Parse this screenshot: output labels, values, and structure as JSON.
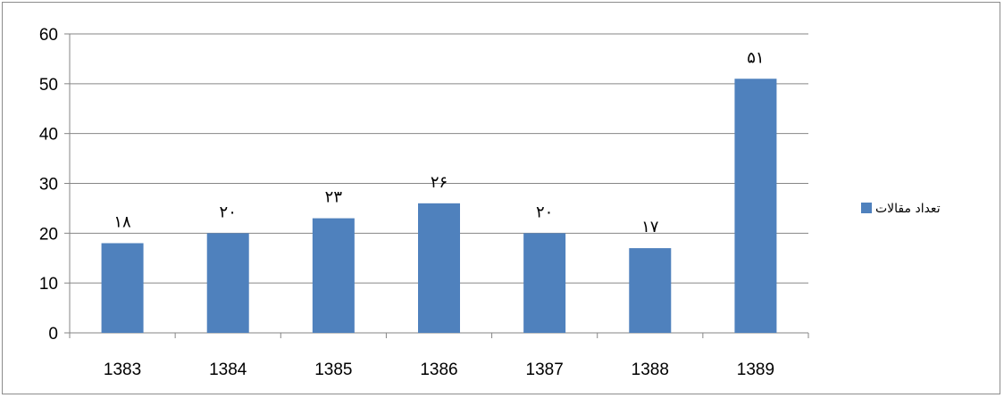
{
  "chart_data": {
    "type": "bar",
    "categories": [
      "1383",
      "1384",
      "1385",
      "1386",
      "1387",
      "1388",
      "1389"
    ],
    "series": [
      {
        "name": "تعداد مقالات",
        "values": [
          18,
          20,
          23,
          26,
          20,
          17,
          51
        ],
        "labels": [
          "۱۸",
          "۲۰",
          "۲۳",
          "۲۶",
          "۲۰",
          "۱۷",
          "۵۱"
        ],
        "color": "#4f81bd"
      }
    ],
    "yticks": [
      "0",
      "10",
      "20",
      "30",
      "40",
      "50",
      "60"
    ],
    "ylim": [
      0,
      60
    ],
    "grid": true,
    "legend_position": "right"
  }
}
